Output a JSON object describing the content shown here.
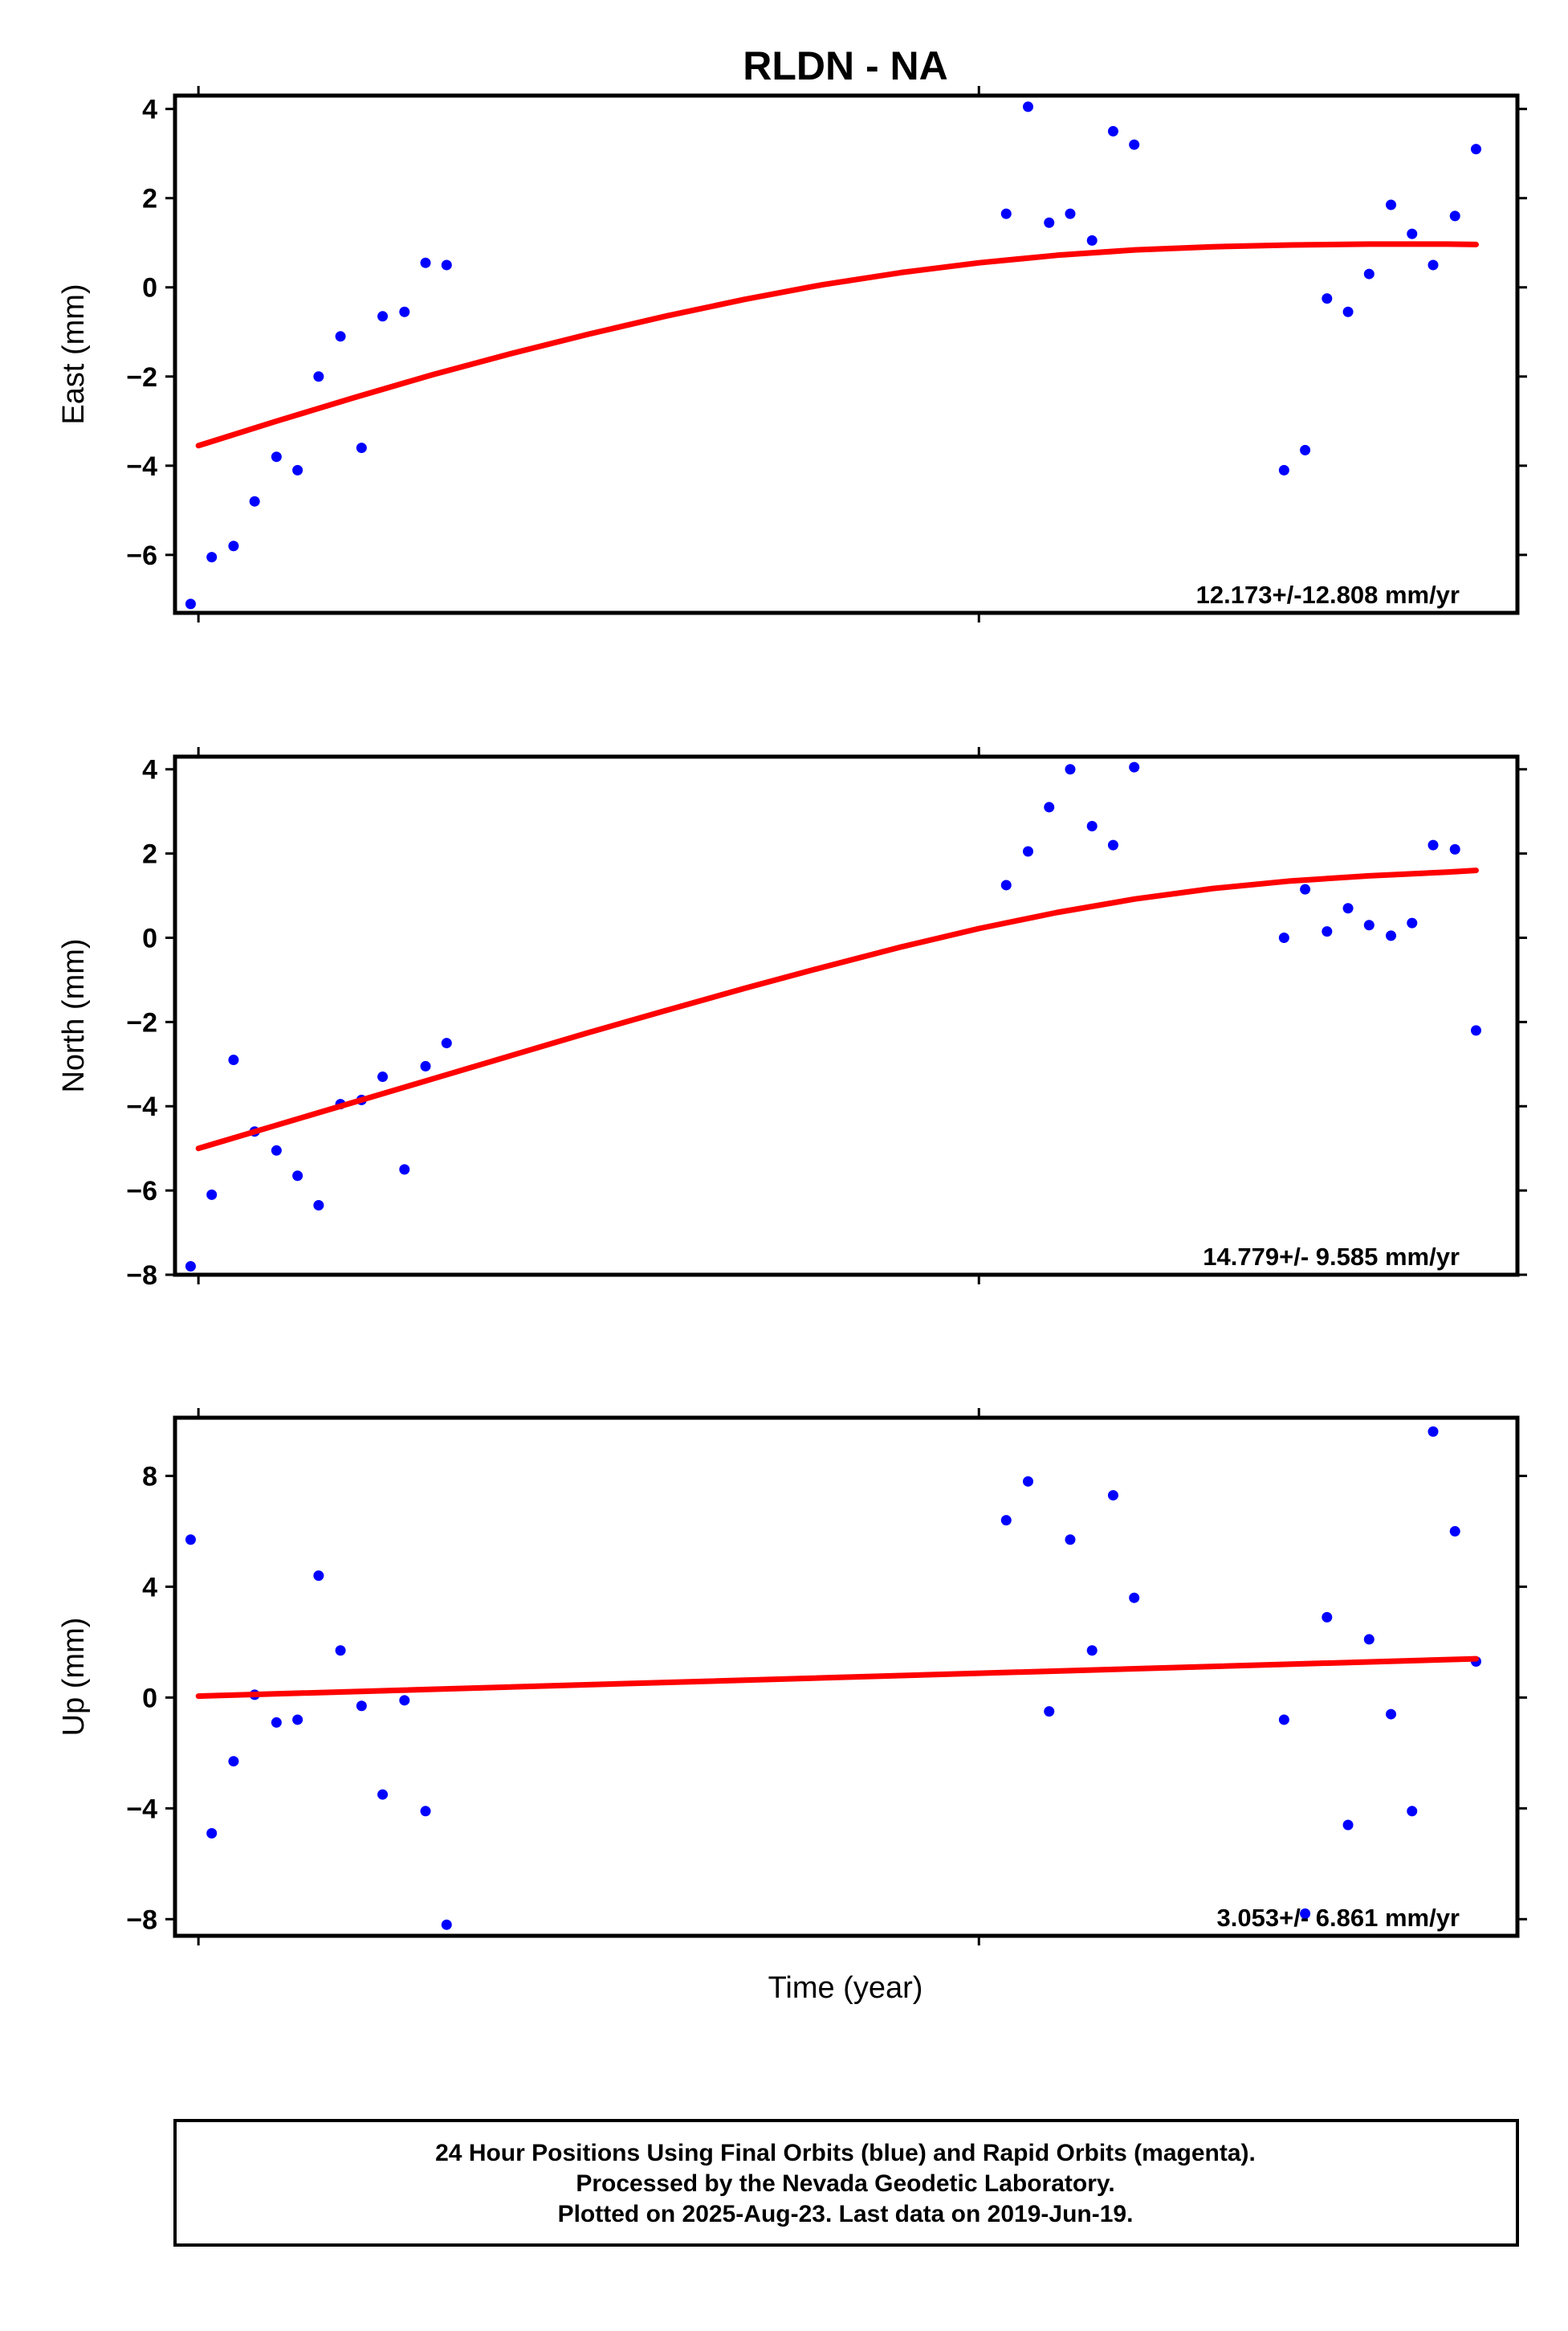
{
  "chart_data": {
    "type": "scatter",
    "title": "RLDN - NA",
    "xlabel": "Time (year)",
    "x_tick_labels_shown": false,
    "footer": [
      "24 Hour Positions Using Final Orbits (blue) and Rapid Orbits (magenta).",
      "Processed by the Nevada Geodetic Laboratory.",
      "Plotted on 2025-Aug-23. Last data on 2019-Jun-19."
    ],
    "colors": {
      "final_orbits": "#0000ff",
      "trend": "#ff0000",
      "frame": "#000000"
    },
    "x_ticks": [
      2017.0,
      2018.0
    ],
    "xlim": [
      2016.97,
      2018.69
    ],
    "panels": [
      {
        "name": "east",
        "ylabel": "East (mm)",
        "ylim": [
          -7.3,
          4.3
        ],
        "yticks": [
          -6,
          -4,
          -2,
          0,
          2,
          4
        ],
        "rate_label": "12.173+/-12.808 mm/yr",
        "points": {
          "x": [
            2016.99,
            2017.017,
            2017.045,
            2017.072,
            2017.1,
            2017.127,
            2017.154,
            2017.182,
            2017.209,
            2017.236,
            2017.264,
            2017.291,
            2017.318,
            2018.035,
            2018.063,
            2018.09,
            2018.117,
            2018.145,
            2018.172,
            2018.199,
            2018.391,
            2018.418,
            2018.446,
            2018.473,
            2018.5,
            2018.528,
            2018.555,
            2018.582,
            2018.61,
            2018.637
          ],
          "y": [
            -7.1,
            -6.05,
            -5.8,
            -4.8,
            -3.8,
            -4.1,
            -2.0,
            -1.1,
            -3.6,
            -0.65,
            -0.55,
            0.55,
            0.5,
            1.65,
            4.05,
            1.45,
            1.65,
            1.05,
            3.5,
            3.2,
            -4.1,
            -3.65,
            -0.25,
            -0.55,
            0.3,
            1.85,
            1.2,
            0.5,
            1.6,
            3.1
          ]
        },
        "trend": {
          "x": [
            2017.0,
            2017.1,
            2017.2,
            2017.3,
            2017.4,
            2017.5,
            2017.6,
            2017.7,
            2017.8,
            2017.9,
            2018.0,
            2018.1,
            2018.2,
            2018.3,
            2018.4,
            2018.5,
            2018.6,
            2018.637
          ],
          "y": [
            -3.55,
            -3.0,
            -2.47,
            -1.96,
            -1.49,
            -1.05,
            -0.64,
            -0.27,
            0.06,
            0.33,
            0.55,
            0.72,
            0.84,
            0.91,
            0.95,
            0.97,
            0.97,
            0.96
          ]
        }
      },
      {
        "name": "north",
        "ylabel": "North (mm)",
        "ylim": [
          -8,
          4.3
        ],
        "yticks": [
          -8,
          -6,
          -4,
          -2,
          0,
          2,
          4
        ],
        "rate_label": "14.779+/- 9.585 mm/yr",
        "points": {
          "x": [
            2016.99,
            2017.017,
            2017.045,
            2017.072,
            2017.1,
            2017.127,
            2017.154,
            2017.182,
            2017.209,
            2017.236,
            2017.264,
            2017.291,
            2017.318,
            2018.035,
            2018.063,
            2018.09,
            2018.117,
            2018.145,
            2018.172,
            2018.199,
            2018.391,
            2018.418,
            2018.446,
            2018.473,
            2018.5,
            2018.528,
            2018.555,
            2018.582,
            2018.61,
            2018.637
          ],
          "y": [
            -7.8,
            -6.1,
            -2.9,
            -4.6,
            -5.05,
            -5.65,
            -6.35,
            -3.95,
            -3.85,
            -3.3,
            -5.5,
            -3.05,
            -2.5,
            1.25,
            2.05,
            3.1,
            4.0,
            2.65,
            2.2,
            4.05,
            0.0,
            1.15,
            0.15,
            0.7,
            0.3,
            0.05,
            0.35,
            2.2,
            2.1,
            -2.2
          ]
        },
        "trend": {
          "x": [
            2017.0,
            2017.1,
            2017.2,
            2017.3,
            2017.4,
            2017.5,
            2017.6,
            2017.7,
            2017.8,
            2017.9,
            2018.0,
            2018.1,
            2018.2,
            2018.3,
            2018.4,
            2018.5,
            2018.6,
            2018.637
          ],
          "y": [
            -5.0,
            -4.45,
            -3.9,
            -3.35,
            -2.8,
            -2.25,
            -1.72,
            -1.2,
            -0.7,
            -0.22,
            0.22,
            0.6,
            0.92,
            1.17,
            1.35,
            1.47,
            1.56,
            1.6
          ]
        }
      },
      {
        "name": "up",
        "ylabel": "Up (mm)",
        "ylim": [
          -8.6,
          10.1
        ],
        "yticks": [
          -8,
          -4,
          0,
          4,
          8
        ],
        "rate_label": "3.053+/- 6.861 mm/yr",
        "points": {
          "x": [
            2016.99,
            2017.017,
            2017.045,
            2017.072,
            2017.1,
            2017.127,
            2017.154,
            2017.182,
            2017.209,
            2017.236,
            2017.264,
            2017.291,
            2017.318,
            2018.035,
            2018.063,
            2018.09,
            2018.117,
            2018.145,
            2018.172,
            2018.199,
            2018.391,
            2018.418,
            2018.446,
            2018.473,
            2018.5,
            2018.528,
            2018.555,
            2018.582,
            2018.61,
            2018.637
          ],
          "y": [
            5.7,
            -4.9,
            -2.3,
            0.1,
            -0.9,
            -0.8,
            4.4,
            1.7,
            -0.3,
            -3.5,
            -0.1,
            -4.1,
            -8.2,
            6.4,
            7.8,
            -0.5,
            5.7,
            1.7,
            7.3,
            3.6,
            -0.8,
            -7.8,
            2.9,
            -4.6,
            2.1,
            -0.6,
            -4.1,
            9.6,
            6.0,
            1.3
          ]
        },
        "trend": {
          "x": [
            2017.0,
            2018.637
          ],
          "y": [
            0.05,
            1.4
          ]
        }
      }
    ]
  }
}
